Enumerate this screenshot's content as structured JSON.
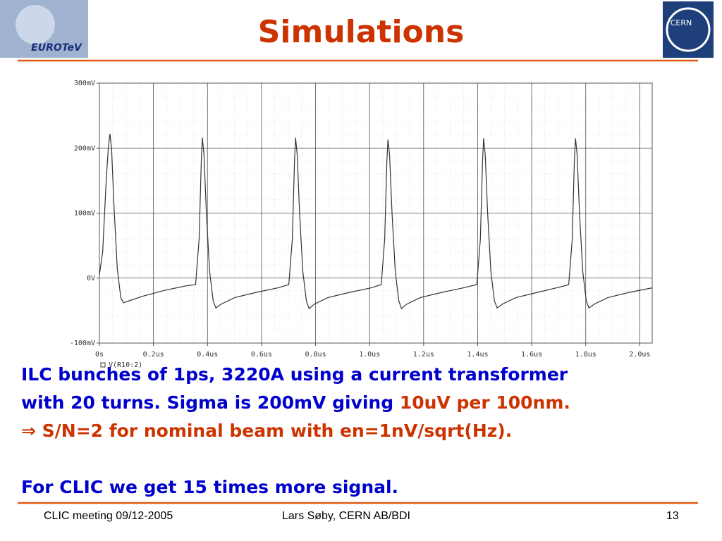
{
  "header": {
    "title": "Simulations",
    "logo_left": "EUROTeV",
    "logo_right": "CERN"
  },
  "chart_data": {
    "type": "line",
    "x": [
      0,
      0.012,
      0.025,
      0.033,
      0.039,
      0.045,
      0.054,
      0.066,
      0.079,
      0.089,
      0.11,
      0.16,
      0.24,
      0.32,
      0.356,
      0.369,
      0.377,
      0.381,
      0.387,
      0.396,
      0.408,
      0.421,
      0.431,
      0.451,
      0.501,
      0.581,
      0.661,
      0.701,
      0.714,
      0.722,
      0.726,
      0.732,
      0.741,
      0.753,
      0.766,
      0.776,
      0.796,
      0.846,
      0.926,
      1.006,
      1.043,
      1.056,
      1.064,
      1.068,
      1.074,
      1.083,
      1.095,
      1.108,
      1.118,
      1.138,
      1.188,
      1.268,
      1.348,
      1.397,
      1.41,
      1.418,
      1.422,
      1.428,
      1.437,
      1.449,
      1.462,
      1.472,
      1.492,
      1.542,
      1.622,
      1.702,
      1.737,
      1.75,
      1.758,
      1.762,
      1.768,
      1.777,
      1.789,
      1.802,
      1.812,
      1.832,
      1.882,
      1.962,
      2.046
    ],
    "series": [
      {
        "name": "V(R10:2)",
        "color": "#333333",
        "values": [
          5,
          40,
          150,
          200,
          222,
          200,
          110,
          15,
          -30,
          -38,
          -35,
          -28,
          -19,
          -12,
          -10,
          60,
          180,
          216,
          190,
          100,
          10,
          -35,
          -46,
          -40,
          -30,
          -22,
          -15,
          -10,
          60,
          180,
          216,
          190,
          100,
          10,
          -35,
          -47,
          -40,
          -30,
          -22,
          -15,
          -10,
          60,
          180,
          213,
          190,
          100,
          10,
          -35,
          -47,
          -40,
          -30,
          -22,
          -15,
          -10,
          60,
          180,
          215,
          190,
          100,
          10,
          -35,
          -46,
          -40,
          -30,
          -22,
          -14,
          -10,
          60,
          180,
          215,
          190,
          100,
          10,
          -35,
          -46,
          -40,
          -30,
          -22,
          -15
        ]
      }
    ],
    "xlim": [
      0,
      2.046
    ],
    "ylim": [
      -100,
      300
    ],
    "xticks": [
      {
        "value": 0,
        "label": "0s"
      },
      {
        "value": 0.2,
        "label": "0.2us"
      },
      {
        "value": 0.4,
        "label": "0.4us"
      },
      {
        "value": 0.6,
        "label": "0.6us"
      },
      {
        "value": 0.8,
        "label": "0.8us"
      },
      {
        "value": 1.0,
        "label": "1.0us"
      },
      {
        "value": 1.2,
        "label": "1.2us"
      },
      {
        "value": 1.4,
        "label": "1.4us"
      },
      {
        "value": 1.6,
        "label": "1.6us"
      },
      {
        "value": 1.8,
        "label": "1.8us"
      },
      {
        "value": 2.0,
        "label": "2.0us"
      }
    ],
    "yticks": [
      {
        "value": -100,
        "label": "-100mV"
      },
      {
        "value": 0,
        "label": "0V"
      },
      {
        "value": 100,
        "label": "100mV"
      },
      {
        "value": 200,
        "label": "200mV"
      },
      {
        "value": 300,
        "label": "300mV"
      }
    ],
    "grid": true
  },
  "body": {
    "lines": [
      [
        {
          "text": "ILC bunches of 1ps, 3220A using a current transformer",
          "color": "#0000cc"
        }
      ],
      [
        {
          "text": "with 20 turns. Sigma is 200mV giving ",
          "color": "#0000cc"
        },
        {
          "text": "10uV per 100nm.",
          "color": "#cc3300"
        }
      ],
      [
        {
          "text": "⇒ S/N=2 for nominal beam with en=1nV/sqrt(Hz).",
          "color": "#cc3300"
        }
      ],
      [
        {
          "text": "For CLIC we get 15 times more signal.",
          "color": "#0000cc"
        }
      ]
    ]
  },
  "footer": {
    "left": "CLIC meeting 09/12-2005",
    "center": "Lars Søby, CERN AB/BDI",
    "page": "13"
  }
}
